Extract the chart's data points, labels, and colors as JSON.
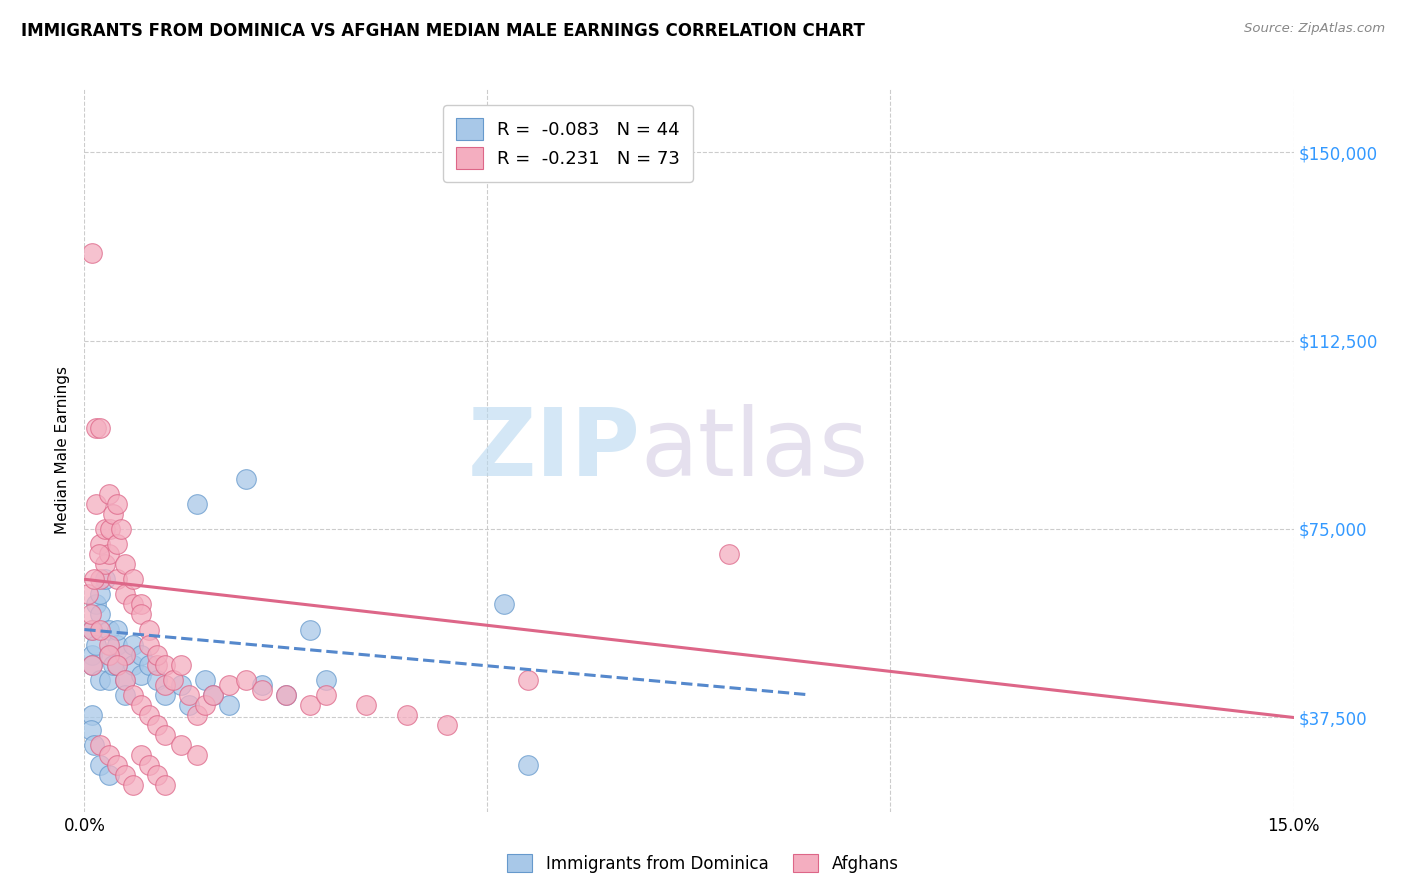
{
  "title": "IMMIGRANTS FROM DOMINICA VS AFGHAN MEDIAN MALE EARNINGS CORRELATION CHART",
  "source": "Source: ZipAtlas.com",
  "ylabel": "Median Male Earnings",
  "xlabel": "",
  "xlim": [
    0.0,
    0.15
  ],
  "ylim": [
    18750,
    162500
  ],
  "yticks": [
    37500,
    75000,
    112500,
    150000
  ],
  "ytick_labels": [
    "$37,500",
    "$75,000",
    "$112,500",
    "$150,000"
  ],
  "xticks": [
    0.0,
    0.05,
    0.1,
    0.15
  ],
  "xtick_labels": [
    "0.0%",
    "",
    "",
    "15.0%"
  ],
  "bg_color": "#ffffff",
  "grid_color": "#cccccc",
  "watermark_zip": "ZIP",
  "watermark_atlas": "atlas",
  "series": [
    {
      "name": "Immigrants from Dominica",
      "color": "#a8c8e8",
      "edge_color": "#6699cc",
      "R": -0.083,
      "N": 44,
      "line_color": "#5588cc",
      "line_style": "--",
      "line_x0": 0.0,
      "line_y0": 55000,
      "line_x1": 0.09,
      "line_y1": 42000,
      "x": [
        0.001,
        0.001,
        0.001,
        0.0015,
        0.0015,
        0.002,
        0.002,
        0.002,
        0.0025,
        0.003,
        0.003,
        0.003,
        0.0035,
        0.004,
        0.004,
        0.004,
        0.005,
        0.005,
        0.005,
        0.006,
        0.006,
        0.007,
        0.007,
        0.008,
        0.009,
        0.01,
        0.012,
        0.013,
        0.014,
        0.015,
        0.016,
        0.018,
        0.02,
        0.022,
        0.025,
        0.028,
        0.03,
        0.052,
        0.055,
        0.001,
        0.0008,
        0.0012,
        0.002,
        0.003
      ],
      "y": [
        50000,
        48000,
        55000,
        60000,
        52000,
        62000,
        58000,
        45000,
        65000,
        55000,
        50000,
        45000,
        48000,
        52000,
        48000,
        55000,
        50000,
        45000,
        42000,
        48000,
        52000,
        50000,
        46000,
        48000,
        45000,
        42000,
        44000,
        40000,
        80000,
        45000,
        42000,
        40000,
        85000,
        44000,
        42000,
        55000,
        45000,
        60000,
        28000,
        38000,
        35000,
        32000,
        28000,
        26000
      ]
    },
    {
      "name": "Afghans",
      "color": "#f4aec0",
      "edge_color": "#dd6688",
      "R": -0.231,
      "N": 73,
      "line_color": "#dd6688",
      "line_style": "-",
      "line_x0": 0.0,
      "line_y0": 65000,
      "line_x1": 0.15,
      "line_y1": 37500,
      "x": [
        0.0005,
        0.001,
        0.001,
        0.001,
        0.0015,
        0.0015,
        0.002,
        0.002,
        0.002,
        0.0025,
        0.0025,
        0.003,
        0.003,
        0.003,
        0.0032,
        0.0035,
        0.004,
        0.004,
        0.004,
        0.0045,
        0.005,
        0.005,
        0.005,
        0.006,
        0.006,
        0.007,
        0.007,
        0.008,
        0.008,
        0.009,
        0.009,
        0.01,
        0.01,
        0.011,
        0.012,
        0.013,
        0.014,
        0.015,
        0.016,
        0.018,
        0.02,
        0.022,
        0.025,
        0.028,
        0.03,
        0.035,
        0.04,
        0.045,
        0.055,
        0.08,
        0.0008,
        0.0012,
        0.0018,
        0.002,
        0.003,
        0.004,
        0.005,
        0.006,
        0.007,
        0.008,
        0.009,
        0.01,
        0.012,
        0.014,
        0.002,
        0.003,
        0.004,
        0.005,
        0.006,
        0.007,
        0.008,
        0.009,
        0.01
      ],
      "y": [
        62000,
        55000,
        48000,
        130000,
        80000,
        95000,
        95000,
        72000,
        65000,
        75000,
        68000,
        82000,
        70000,
        52000,
        75000,
        78000,
        80000,
        65000,
        72000,
        75000,
        68000,
        62000,
        50000,
        65000,
        60000,
        60000,
        58000,
        55000,
        52000,
        48000,
        50000,
        48000,
        44000,
        45000,
        48000,
        42000,
        38000,
        40000,
        42000,
        44000,
        45000,
        43000,
        42000,
        40000,
        42000,
        40000,
        38000,
        36000,
        45000,
        70000,
        58000,
        65000,
        70000,
        55000,
        50000,
        48000,
        45000,
        42000,
        40000,
        38000,
        36000,
        34000,
        32000,
        30000,
        32000,
        30000,
        28000,
        26000,
        24000,
        30000,
        28000,
        26000,
        24000
      ]
    }
  ]
}
